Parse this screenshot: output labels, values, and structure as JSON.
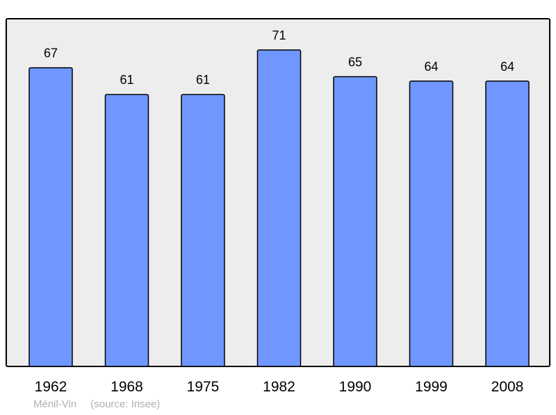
{
  "chart_data": {
    "type": "bar",
    "categories": [
      "1962",
      "1968",
      "1975",
      "1982",
      "1990",
      "1999",
      "2008"
    ],
    "values": [
      67,
      61,
      61,
      71,
      65,
      64,
      64
    ],
    "title": "",
    "xlabel": "",
    "ylabel": "",
    "ylim": [
      0,
      78
    ],
    "grid": false,
    "data_labels": true,
    "colors": {
      "bar": "#7097ff",
      "bar_border": "#000000",
      "plot_background": "#ededed"
    }
  },
  "footer": {
    "place": "Ménil-Vin",
    "source": "(source: Insee)"
  }
}
